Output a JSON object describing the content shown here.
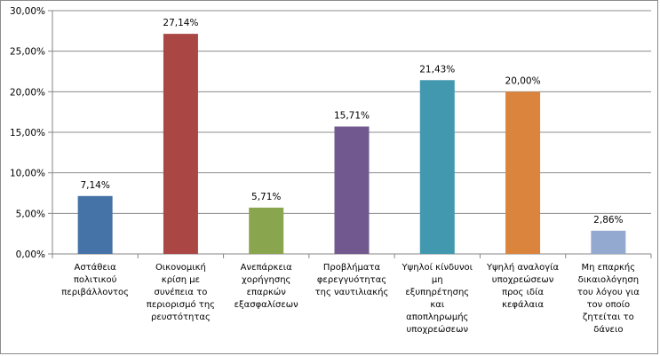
{
  "chart_data": {
    "type": "bar",
    "categories": [
      [
        "Αστάθεια",
        "πολιτικού",
        "περιβάλλοντος"
      ],
      [
        "Οικονομική",
        "κρίση με",
        "συνέπεια το",
        "περιορισμό της",
        "ρευστότητας"
      ],
      [
        "Ανεπάρκεια",
        "χορήγησης",
        "επαρκών",
        "εξασφαλίσεων"
      ],
      [
        "Προβλήματα",
        "φερεγγυότητας",
        "της ναυτιλιακής"
      ],
      [
        "Υψηλοί κίνδυνοι",
        "μη",
        "εξυπηρέτησης",
        "και",
        "αποπληρωμής",
        "υποχρεώσεων"
      ],
      [
        "Υψηλή αναλογία",
        "υποχρεώσεων",
        "προς ιδία",
        "κεφάλαια"
      ],
      [
        "Μη επαρκής",
        "δικαιολόγηση",
        "του λόγου για",
        "τον οποίο",
        "ζητείται το",
        "δάνειο"
      ]
    ],
    "values": [
      7.14,
      27.14,
      5.71,
      15.71,
      21.43,
      20.0,
      2.86
    ],
    "data_labels": [
      "7,14%",
      "27,14%",
      "5,71%",
      "15,71%",
      "21,43%",
      "20,00%",
      "2,86%"
    ],
    "colors": [
      "#4572a7",
      "#aa4643",
      "#89a54e",
      "#71588f",
      "#4198af",
      "#db843d",
      "#93a9cf"
    ],
    "yticks": [
      "0,00%",
      "5,00%",
      "10,00%",
      "15,00%",
      "20,00%",
      "25,00%",
      "30,00%"
    ],
    "ylim": [
      0,
      30
    ],
    "grid": true,
    "legend": "none"
  }
}
